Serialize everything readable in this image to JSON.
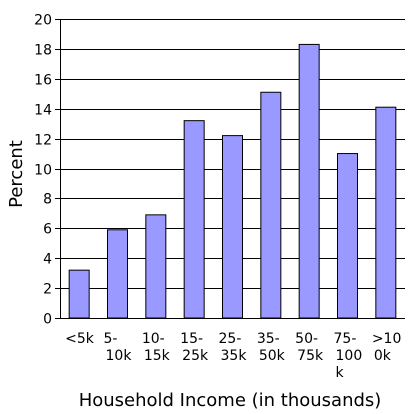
{
  "chart_data": {
    "type": "bar",
    "categories": [
      [
        "<5k"
      ],
      [
        "5-",
        "10k"
      ],
      [
        "10-",
        "15k"
      ],
      [
        "15-",
        "25k"
      ],
      [
        "25-",
        "35k"
      ],
      [
        "35-",
        "50k"
      ],
      [
        "50-",
        "75k"
      ],
      [
        "75-",
        "100",
        "k"
      ],
      [
        ">10",
        "0k"
      ]
    ],
    "values": [
      3.2,
      5.9,
      6.9,
      13.2,
      12.2,
      15.1,
      18.3,
      11.0,
      14.1
    ],
    "xlabel": "Household Income (in thousands)",
    "ylabel": "Percent",
    "ylim": [
      0,
      20
    ],
    "yticks": [
      0,
      2,
      4,
      6,
      8,
      10,
      12,
      14,
      16,
      18,
      20
    ],
    "grid": "horizontal",
    "legend": "none",
    "colors": {
      "bar_fill": "#9999ff",
      "bar_stroke": "#000000",
      "grid": "#000000"
    }
  }
}
